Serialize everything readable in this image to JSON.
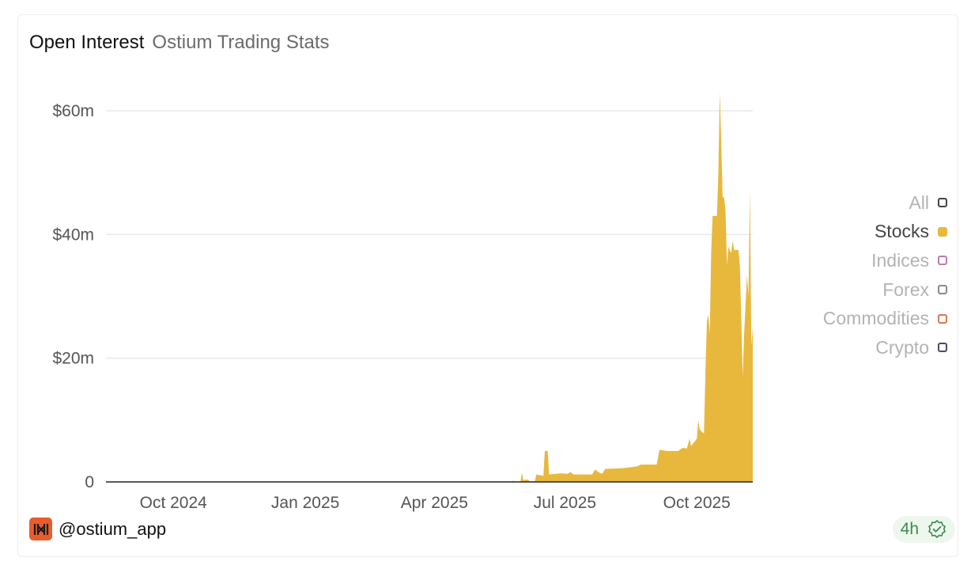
{
  "header": {
    "title": "Open Interest",
    "subtitle": "Ostium Trading Stats"
  },
  "footer": {
    "handle": "@ostium_app",
    "badge_text": "4h",
    "badge_icon": "verified-check-icon"
  },
  "colors": {
    "stocks": "#e8b83d",
    "grid": "#e9e9e9",
    "axis_text": "#555555"
  },
  "legend": [
    {
      "label": "All",
      "color": "#444444",
      "active": false,
      "filled": false
    },
    {
      "label": "Stocks",
      "color": "#e8b83d",
      "active": true,
      "filled": true
    },
    {
      "label": "Indices",
      "color": "#c07aa8",
      "active": false,
      "filled": false
    },
    {
      "label": "Forex",
      "color": "#8a8a8a",
      "active": false,
      "filled": false
    },
    {
      "label": "Commodities",
      "color": "#d9774e",
      "active": false,
      "filled": false
    },
    {
      "label": "Crypto",
      "color": "#4b4a6b",
      "active": false,
      "filled": false
    }
  ],
  "chart_data": {
    "type": "area",
    "title": "Open Interest",
    "subtitle": "Ostium Trading Stats",
    "x_ticks": [
      "Oct 2024",
      "Jan 2025",
      "Apr 2025",
      "Jul 2025",
      "Oct 2025"
    ],
    "y_ticks": [
      "0",
      "$20m",
      "$40m",
      "$60m"
    ],
    "ylim": [
      0,
      60
    ],
    "y_unit": "$m",
    "grid": true,
    "legend_position": "right",
    "series": [
      {
        "name": "Stocks",
        "points": [
          [
            "2024-08-15",
            0
          ],
          [
            "2025-05-25",
            0
          ],
          [
            "2025-05-26",
            0.2
          ],
          [
            "2025-05-28",
            0
          ],
          [
            "2025-05-31",
            0
          ],
          [
            "2025-06-01",
            1.5
          ],
          [
            "2025-06-02",
            0.3
          ],
          [
            "2025-06-05",
            0.4
          ],
          [
            "2025-06-07",
            0
          ],
          [
            "2025-06-10",
            0
          ],
          [
            "2025-06-11",
            1.2
          ],
          [
            "2025-06-16",
            1.0
          ],
          [
            "2025-06-17",
            5.0
          ],
          [
            "2025-06-19",
            5.0
          ],
          [
            "2025-06-20",
            1.2
          ],
          [
            "2025-06-28",
            1.4
          ],
          [
            "2025-07-03",
            1.3
          ],
          [
            "2025-07-05",
            1.6
          ],
          [
            "2025-07-07",
            1.2
          ],
          [
            "2025-07-20",
            1.2
          ],
          [
            "2025-07-22",
            2.0
          ],
          [
            "2025-07-25",
            1.5
          ],
          [
            "2025-07-27",
            1.3
          ],
          [
            "2025-07-29",
            2.1
          ],
          [
            "2025-08-10",
            2.2
          ],
          [
            "2025-08-20",
            2.5
          ],
          [
            "2025-08-23",
            2.8
          ],
          [
            "2025-09-03",
            2.8
          ],
          [
            "2025-09-05",
            5.2
          ],
          [
            "2025-09-10",
            5.0
          ],
          [
            "2025-09-18",
            5.0
          ],
          [
            "2025-09-21",
            5.5
          ],
          [
            "2025-09-24",
            5.4
          ],
          [
            "2025-09-26",
            7.0
          ],
          [
            "2025-09-27",
            5.8
          ],
          [
            "2025-10-01",
            7.0
          ],
          [
            "2025-10-02",
            10.0
          ],
          [
            "2025-10-03",
            8.5
          ],
          [
            "2025-10-05",
            8.0
          ],
          [
            "2025-10-06",
            7.8
          ],
          [
            "2025-10-07",
            17.5
          ],
          [
            "2025-10-08",
            26.0
          ],
          [
            "2025-10-09",
            27.0
          ],
          [
            "2025-10-10",
            24.0
          ],
          [
            "2025-10-11",
            37.0
          ],
          [
            "2025-10-12",
            43.0
          ],
          [
            "2025-10-15",
            43.0
          ],
          [
            "2025-10-16",
            50.0
          ],
          [
            "2025-10-17",
            63.0
          ],
          [
            "2025-10-18",
            55.0
          ],
          [
            "2025-10-19",
            46.0
          ],
          [
            "2025-10-20",
            46.0
          ],
          [
            "2025-10-21",
            44.0
          ],
          [
            "2025-10-22",
            35.0
          ],
          [
            "2025-10-23",
            38.0
          ],
          [
            "2025-10-25",
            37.0
          ],
          [
            "2025-10-26",
            39.0
          ],
          [
            "2025-10-27",
            37.5
          ],
          [
            "2025-10-30",
            37.5
          ],
          [
            "2025-10-31",
            35.0
          ],
          [
            "2025-11-02",
            17.0
          ],
          [
            "2025-11-03",
            24.0
          ],
          [
            "2025-11-05",
            33.5
          ],
          [
            "2025-11-06",
            30.0
          ],
          [
            "2025-11-07",
            47.0
          ],
          [
            "2025-11-08",
            22.0
          ],
          [
            "2025-11-09",
            25.0
          ]
        ]
      }
    ]
  }
}
